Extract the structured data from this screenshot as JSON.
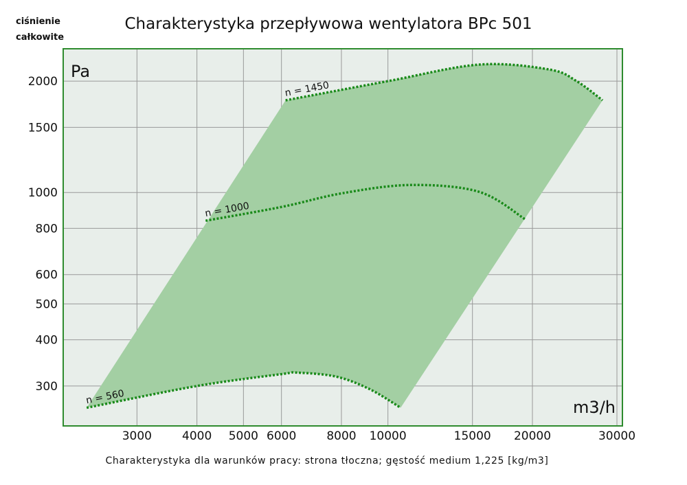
{
  "chart_data": {
    "type": "line",
    "title": "Charakterystyka przepływowa wentylatora BPc 501",
    "ylabel_top": "ciśnienie",
    "ylabel_bottom": "całkowite",
    "y_unit": "Pa",
    "x_unit": "m3/h",
    "footnote": "Charakterystyka dla warunków pracy: strona tłoczna; gęstość medium 1,225 [kg/m3]",
    "x_scale": "log",
    "y_scale": "log",
    "xlim": [
      2106,
      30800
    ],
    "ylim": [
      234,
      2446
    ],
    "x_ticks": [
      3000,
      4000,
      5000,
      6000,
      8000,
      10000,
      15000,
      20000,
      30000
    ],
    "y_ticks": [
      2000,
      1500,
      1000,
      800,
      600,
      500,
      400,
      300
    ],
    "grid": true,
    "colors": {
      "frame": "#2e8b2e",
      "plot_bg": "#e8eeea",
      "region": "#a3cfa3",
      "curve": "#1a8a1a",
      "grid": "#999999"
    },
    "series": [
      {
        "name": "n = 560",
        "x": [
          2357,
          4000,
          6000,
          6470,
          7800,
          9170,
          10630
        ],
        "y": [
          262,
          300,
          323,
          326,
          318,
          294,
          262
        ]
      },
      {
        "name": "n = 1000",
        "x": [
          4170,
          6000,
          8050,
          11180,
          15500,
          19330
        ],
        "y": [
          839,
          914,
          996,
          1048,
          1004,
          846
        ]
      },
      {
        "name": "n = 1450",
        "x": [
          6120,
          10000,
          15500,
          21700,
          24720,
          28000
        ],
        "y": [
          1775,
          2000,
          2217,
          2150,
          2000,
          1775
        ]
      }
    ]
  }
}
